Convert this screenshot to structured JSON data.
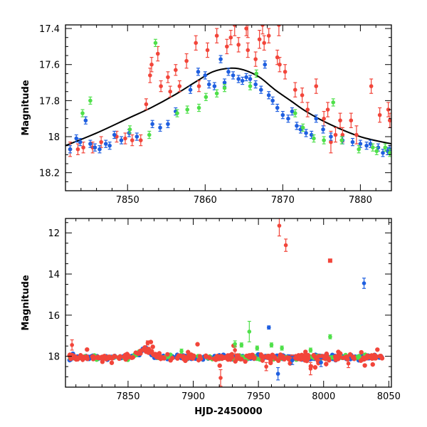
{
  "colors": {
    "red": "#f2453a",
    "blue": "#1f5fe0",
    "green": "#4fe04a",
    "fit": "#000000"
  },
  "chart_data": [
    {
      "type": "scatter",
      "panel": "top",
      "xlim": [
        7842,
        7884
      ],
      "ylim": [
        18.3,
        17.38
      ],
      "y_inverted": true,
      "ylabel": "Magnitude",
      "xlabel": "",
      "xticks": [
        7850,
        7860,
        7870,
        7880
      ],
      "yticks": [
        17.4,
        17.6,
        17.8,
        18,
        18.2
      ],
      "ytick_labels": [
        "17.4",
        "17.6",
        "17.8",
        "18",
        "18.2"
      ],
      "series": [
        {
          "color": "#f2453a",
          "points": [
            [
              7842.6,
              18.07,
              0.04
            ],
            [
              7843.6,
              18.07,
              0.03
            ],
            [
              7844.3,
              18.06,
              0.03
            ],
            [
              7845.5,
              18.06,
              0.03
            ],
            [
              7846.6,
              18.03,
              0.03
            ],
            [
              7848.6,
              18.0,
              0.03
            ],
            [
              7849.7,
              18.01,
              0.03
            ],
            [
              7850.6,
              18.02,
              0.03
            ],
            [
              7851.7,
              18.02,
              0.03
            ],
            [
              7852.4,
              17.82,
              0.03
            ],
            [
              7852.9,
              17.66,
              0.04
            ],
            [
              7853.1,
              17.6,
              0.04
            ],
            [
              7853.9,
              17.54,
              0.04
            ],
            [
              7854.3,
              17.72,
              0.03
            ],
            [
              7855.2,
              17.67,
              0.03
            ],
            [
              7855.5,
              17.75,
              0.03
            ],
            [
              7856.2,
              17.63,
              0.03
            ],
            [
              7856.7,
              17.72,
              0.03
            ],
            [
              7857.6,
              17.58,
              0.04
            ],
            [
              7858.8,
              17.48,
              0.04
            ],
            [
              7859.2,
              17.72,
              0.03
            ],
            [
              7860.3,
              17.52,
              0.04
            ],
            [
              7861.5,
              17.44,
              0.04
            ],
            [
              7862.8,
              17.5,
              0.04
            ],
            [
              7863.3,
              17.45,
              0.04
            ],
            [
              7864.3,
              17.49,
              0.04
            ],
            [
              7865.3,
              17.4,
              0.04
            ],
            [
              7865.5,
              17.52,
              0.04
            ],
            [
              7866.5,
              17.57,
              0.04
            ],
            [
              7867.4,
              17.38,
              0.05
            ],
            [
              7867.6,
              17.48,
              0.04
            ],
            [
              7868.2,
              17.44,
              0.04
            ],
            [
              7869.3,
              17.56,
              0.04
            ],
            [
              7869.6,
              17.6,
              0.04
            ],
            [
              7870.3,
              17.64,
              0.04
            ],
            [
              7871.6,
              17.74,
              0.04
            ],
            [
              7872.5,
              17.77,
              0.04
            ],
            [
              7873.2,
              17.85,
              0.04
            ],
            [
              7874.3,
              17.72,
              0.04
            ],
            [
              7875.3,
              17.9,
              0.04
            ],
            [
              7875.8,
              17.85,
              0.04
            ],
            [
              7876.2,
              18.03,
              0.06
            ],
            [
              7876.8,
              17.99,
              0.04
            ],
            [
              7877.4,
              17.91,
              0.04
            ],
            [
              7877.7,
              17.99,
              0.04
            ],
            [
              7878.8,
              17.91,
              0.04
            ],
            [
              7879.5,
              17.99,
              0.05
            ],
            [
              7881.4,
              17.72,
              0.04
            ],
            [
              7882.5,
              17.88,
              0.04
            ],
            [
              7883.6,
              17.85,
              0.04
            ],
            [
              7883.8,
              17.91,
              0.04
            ],
            [
              7865.5,
              17.37,
              0.08
            ],
            [
              7869.5,
              17.38,
              0.06
            ],
            [
              7867.0,
              17.46,
              0.05
            ],
            [
              7863.8,
              17.38,
              0.06
            ]
          ]
        },
        {
          "color": "#1f5fe0",
          "points": [
            [
              7842.6,
              18.07,
              0.02
            ],
            [
              7843.4,
              18.01,
              0.02
            ],
            [
              7843.9,
              18.03,
              0.02
            ],
            [
              7844.6,
              17.91,
              0.02
            ],
            [
              7845.2,
              18.04,
              0.02
            ],
            [
              7845.8,
              18.06,
              0.02
            ],
            [
              7846.4,
              18.07,
              0.02
            ],
            [
              7847.2,
              18.04,
              0.02
            ],
            [
              7847.7,
              18.05,
              0.02
            ],
            [
              7848.3,
              17.99,
              0.02
            ],
            [
              7849.2,
              18.02,
              0.02
            ],
            [
              7850.2,
              17.98,
              0.02
            ],
            [
              7851.2,
              18.0,
              0.02
            ],
            [
              7853.2,
              17.93,
              0.02
            ],
            [
              7854.2,
              17.95,
              0.02
            ],
            [
              7855.2,
              17.93,
              0.02
            ],
            [
              7856.2,
              17.86,
              0.02
            ],
            [
              7858.1,
              17.74,
              0.02
            ],
            [
              7859.1,
              17.64,
              0.02
            ],
            [
              7860.0,
              17.66,
              0.02
            ],
            [
              7860.5,
              17.71,
              0.02
            ],
            [
              7861.2,
              17.72,
              0.02
            ],
            [
              7862.0,
              17.57,
              0.02
            ],
            [
              7862.5,
              17.7,
              0.02
            ],
            [
              7863.0,
              17.64,
              0.02
            ],
            [
              7863.6,
              17.66,
              0.02
            ],
            [
              7864.3,
              17.68,
              0.02
            ],
            [
              7864.8,
              17.69,
              0.02
            ],
            [
              7865.3,
              17.67,
              0.02
            ],
            [
              7865.8,
              17.68,
              0.02
            ],
            [
              7866.5,
              17.71,
              0.02
            ],
            [
              7867.2,
              17.74,
              0.02
            ],
            [
              7867.7,
              17.6,
              0.02
            ],
            [
              7868.2,
              17.77,
              0.02
            ],
            [
              7868.7,
              17.8,
              0.02
            ],
            [
              7869.3,
              17.84,
              0.02
            ],
            [
              7870.0,
              17.88,
              0.02
            ],
            [
              7870.7,
              17.9,
              0.02
            ],
            [
              7871.2,
              17.86,
              0.02
            ],
            [
              7871.8,
              17.94,
              0.02
            ],
            [
              7872.3,
              17.96,
              0.02
            ],
            [
              7873.0,
              17.98,
              0.02
            ],
            [
              7873.7,
              17.99,
              0.02
            ],
            [
              7874.3,
              17.9,
              0.02
            ],
            [
              7875.2,
              17.96,
              0.02
            ],
            [
              7876.2,
              18.0,
              0.02
            ],
            [
              7877.7,
              18.02,
              0.02
            ],
            [
              7879.0,
              18.03,
              0.02
            ],
            [
              7880.0,
              18.04,
              0.02
            ],
            [
              7880.8,
              18.05,
              0.02
            ],
            [
              7881.3,
              18.04,
              0.02
            ],
            [
              7882.3,
              18.06,
              0.02
            ],
            [
              7882.9,
              18.09,
              0.02
            ],
            [
              7883.5,
              18.08,
              0.02
            ],
            [
              7883.8,
              18.07,
              0.02
            ]
          ]
        },
        {
          "color": "#4fe04a",
          "points": [
            [
              7844.2,
              17.87,
              0.02
            ],
            [
              7845.2,
              17.8,
              0.02
            ],
            [
              7850.3,
              17.96,
              0.02
            ],
            [
              7852.8,
              17.99,
              0.02
            ],
            [
              7853.6,
              17.48,
              0.02
            ],
            [
              7856.4,
              17.87,
              0.02
            ],
            [
              7857.7,
              17.85,
              0.02
            ],
            [
              7859.2,
              17.84,
              0.02
            ],
            [
              7860.1,
              17.78,
              0.02
            ],
            [
              7861.5,
              17.76,
              0.02
            ],
            [
              7862.5,
              17.73,
              0.02
            ],
            [
              7865.8,
              17.72,
              0.02
            ],
            [
              7866.6,
              17.65,
              0.02
            ],
            [
              7871.6,
              17.87,
              0.02
            ],
            [
              7872.6,
              17.95,
              0.02
            ],
            [
              7875.3,
              18.02,
              0.02
            ],
            [
              7876.5,
              17.81,
              0.02
            ],
            [
              7877.6,
              18.02,
              0.02
            ],
            [
              7879.8,
              18.07,
              0.02
            ],
            [
              7881.6,
              18.06,
              0.02
            ],
            [
              7882.1,
              18.08,
              0.02
            ],
            [
              7883.2,
              18.06,
              0.02
            ],
            [
              7883.8,
              18.09,
              0.02
            ],
            [
              7874.0,
              18.01,
              0.02
            ]
          ]
        }
      ],
      "fit_curve": {
        "color": "#000000",
        "points": [
          [
            7842,
            18.05
          ],
          [
            7846,
            17.98
          ],
          [
            7850,
            17.9
          ],
          [
            7853,
            17.84
          ],
          [
            7856,
            17.77
          ],
          [
            7859,
            17.69
          ],
          [
            7861,
            17.64
          ],
          [
            7863.3,
            17.62
          ],
          [
            7865,
            17.63
          ],
          [
            7867,
            17.67
          ],
          [
            7869,
            17.74
          ],
          [
            7871,
            17.8
          ],
          [
            7873,
            17.86
          ],
          [
            7876,
            17.93
          ],
          [
            7880,
            18.0
          ],
          [
            7884,
            18.04
          ]
        ]
      }
    },
    {
      "type": "scatter",
      "panel": "bottom",
      "xlim": [
        7802,
        8052
      ],
      "ylim": [
        19.5,
        11.3
      ],
      "y_inverted": true,
      "xlabel": "HJD-2450000",
      "ylabel": "Magnitude",
      "xticks": [
        7850,
        7900,
        7950,
        8000,
        8050
      ],
      "yticks": [
        12,
        14,
        16,
        18
      ],
      "series": [
        {
          "color": "#f2453a",
          "points": [
            [
              7807,
              17.45,
              0.25
            ],
            [
              7966,
              11.65,
              0.5
            ],
            [
              7971,
              12.6,
              0.3
            ],
            [
              7921,
              19.05,
              0.4
            ],
            [
              7956,
              18.5,
              0.2
            ],
            [
              7990,
              18.6,
              0.3
            ],
            [
              8019,
              18.35,
              0.2
            ],
            [
              7932,
              17.7,
              0.2
            ],
            [
              7865,
              17.35,
              0.1
            ]
          ],
          "square_points": [
            [
              8005,
              13.35
            ]
          ]
        },
        {
          "color": "#1f5fe0",
          "points": [
            [
              8031,
              14.45,
              0.25
            ],
            [
              7958,
              16.6,
              0.08
            ],
            [
              7965,
              18.85,
              0.3
            ],
            [
              7998,
              18.3,
              0.2
            ],
            [
              7976,
              18.2,
              0.2
            ]
          ]
        },
        {
          "color": "#4fe04a",
          "points": [
            [
              7943,
              16.8,
              0.5
            ],
            [
              7932,
              17.4,
              0.15
            ],
            [
              7949,
              17.6,
              0.1
            ],
            [
              7937,
              17.45,
              0.1
            ],
            [
              7968,
              17.6,
              0.1
            ],
            [
              7960,
              17.45,
              0.1
            ],
            [
              7891,
              17.75,
              0.1
            ],
            [
              8005,
              17.05,
              0.1
            ],
            [
              7990,
              17.7,
              0.1
            ]
          ]
        }
      ],
      "band_note": "Dense light curve along ~18 magnitude with a hump near 7865; red, blue, green observations."
    }
  ]
}
